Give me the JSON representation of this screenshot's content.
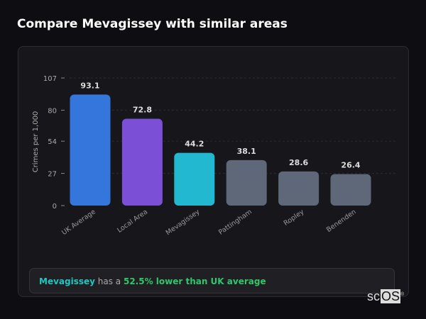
{
  "title": "Compare Mevagissey with similar areas",
  "chart_data": {
    "type": "bar",
    "categories": [
      "UK Average",
      "Local Area",
      "Mevagissey",
      "Pattingham",
      "Ropley",
      "Benenden"
    ],
    "values": [
      93.1,
      72.8,
      44.2,
      38.1,
      28.6,
      26.4
    ],
    "colors": [
      "#3576dd",
      "#7b4fd6",
      "#21b8d0",
      "#5e6878",
      "#5e6878",
      "#5e6878"
    ],
    "ylabel": "Crimes per 1,000",
    "yticks": [
      0,
      27,
      54,
      80,
      107
    ],
    "ylim": [
      0,
      107
    ],
    "grid": true
  },
  "summary": {
    "place": "Mevagissey",
    "middle": " has a ",
    "highlight": "52.5% lower than UK average"
  },
  "logo": {
    "text_plain": "sc",
    "text_box": "OS",
    "mark": "®"
  }
}
